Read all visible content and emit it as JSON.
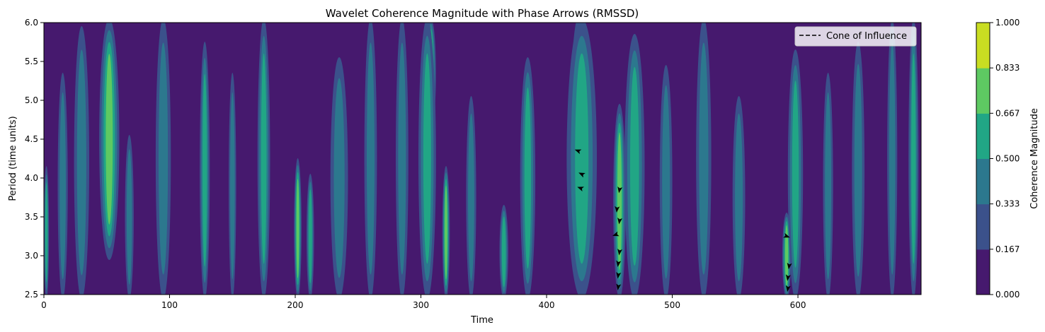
{
  "chart_data": {
    "type": "heatmap",
    "title": "Wavelet Coherence Magnitude with Phase Arrows (RMSSD)",
    "xlabel": "Time",
    "ylabel": "Period (time units)",
    "xlim": [
      0,
      698
    ],
    "ylim": [
      2.5,
      6.0
    ],
    "x_ticks": [
      "0",
      "100",
      "200",
      "300",
      "400",
      "500",
      "600"
    ],
    "y_ticks": [
      "2.5",
      "3.0",
      "3.5",
      "4.0",
      "4.5",
      "5.0",
      "5.5",
      "6.0"
    ],
    "colorbar": {
      "label": "Coherence Magnitude",
      "levels": [
        "0.000",
        "0.167",
        "0.333",
        "0.500",
        "0.667",
        "0.833",
        "1.000"
      ],
      "colors": [
        "#46196e",
        "#3b518b",
        "#2c788e",
        "#21a685",
        "#5ec962",
        "#c9dd22"
      ]
    },
    "legend": {
      "label": "Cone of Influence",
      "style": "dashed",
      "color": "#000000",
      "position": "top-right"
    },
    "phase_arrows": [
      {
        "x": 425,
        "y": 4.35,
        "angle": 160
      },
      {
        "x": 428,
        "y": 4.05,
        "angle": 155
      },
      {
        "x": 427,
        "y": 3.87,
        "angle": 160
      },
      {
        "x": 458,
        "y": 3.85,
        "angle": 260
      },
      {
        "x": 456,
        "y": 3.6,
        "angle": 265
      },
      {
        "x": 458,
        "y": 3.45,
        "angle": 262
      },
      {
        "x": 455,
        "y": 3.27,
        "angle": 200
      },
      {
        "x": 458,
        "y": 3.05,
        "angle": 262
      },
      {
        "x": 457,
        "y": 2.9,
        "angle": 262
      },
      {
        "x": 457,
        "y": 2.75,
        "angle": 262
      },
      {
        "x": 457,
        "y": 2.6,
        "angle": 262
      },
      {
        "x": 591,
        "y": 3.25,
        "angle": 340
      },
      {
        "x": 593,
        "y": 2.87,
        "angle": 262
      },
      {
        "x": 592,
        "y": 2.72,
        "angle": 262
      },
      {
        "x": 592,
        "y": 2.58,
        "angle": 262
      }
    ],
    "ridges": [
      {
        "x": 2,
        "w": 4,
        "lo": 2.5,
        "hi": 4.1,
        "peak": 3
      },
      {
        "x": 15,
        "w": 8,
        "lo": 2.5,
        "hi": 5.3,
        "peak": 2
      },
      {
        "x": 30,
        "w": 12,
        "lo": 2.5,
        "hi": 5.9,
        "peak": 2
      },
      {
        "x": 52,
        "w": 16,
        "lo": 3.0,
        "hi": 6.0,
        "peak": 4
      },
      {
        "x": 68,
        "w": 7,
        "lo": 2.5,
        "hi": 4.5,
        "peak": 2
      },
      {
        "x": 95,
        "w": 12,
        "lo": 2.5,
        "hi": 6.0,
        "peak": 2
      },
      {
        "x": 128,
        "w": 8,
        "lo": 2.5,
        "hi": 5.7,
        "peak": 3
      },
      {
        "x": 150,
        "w": 6,
        "lo": 2.5,
        "hi": 5.3,
        "peak": 2
      },
      {
        "x": 175,
        "w": 10,
        "lo": 2.5,
        "hi": 6.0,
        "peak": 3
      },
      {
        "x": 202,
        "w": 6,
        "lo": 2.5,
        "hi": 4.2,
        "peak": 4
      },
      {
        "x": 212,
        "w": 6,
        "lo": 2.5,
        "hi": 4.0,
        "peak": 3
      },
      {
        "x": 235,
        "w": 14,
        "lo": 2.5,
        "hi": 5.5,
        "peak": 2
      },
      {
        "x": 260,
        "w": 10,
        "lo": 2.5,
        "hi": 6.0,
        "peak": 2
      },
      {
        "x": 285,
        "w": 10,
        "lo": 2.5,
        "hi": 6.0,
        "peak": 2
      },
      {
        "x": 308,
        "w": 8,
        "lo": 4.7,
        "hi": 6.0,
        "peak": 4
      },
      {
        "x": 305,
        "w": 14,
        "lo": 2.5,
        "hi": 6.0,
        "peak": 3
      },
      {
        "x": 320,
        "w": 6,
        "lo": 2.5,
        "hi": 4.1,
        "peak": 4
      },
      {
        "x": 340,
        "w": 8,
        "lo": 2.5,
        "hi": 5.0,
        "peak": 2
      },
      {
        "x": 366,
        "w": 7,
        "lo": 2.5,
        "hi": 3.6,
        "peak": 3
      },
      {
        "x": 385,
        "w": 12,
        "lo": 2.5,
        "hi": 5.5,
        "peak": 3
      },
      {
        "x": 425,
        "w": 12,
        "lo": 3.1,
        "hi": 6.0,
        "peak": 4
      },
      {
        "x": 428,
        "w": 24,
        "lo": 2.5,
        "hi": 6.0,
        "peak": 3
      },
      {
        "x": 458,
        "w": 10,
        "lo": 2.5,
        "hi": 4.9,
        "peak": 4
      },
      {
        "x": 470,
        "w": 16,
        "lo": 2.5,
        "hi": 5.8,
        "peak": 3
      },
      {
        "x": 495,
        "w": 10,
        "lo": 2.5,
        "hi": 5.4,
        "peak": 2
      },
      {
        "x": 525,
        "w": 12,
        "lo": 2.5,
        "hi": 6.0,
        "peak": 2
      },
      {
        "x": 553,
        "w": 10,
        "lo": 2.5,
        "hi": 5.0,
        "peak": 2
      },
      {
        "x": 591,
        "w": 7,
        "lo": 2.5,
        "hi": 3.5,
        "peak": 4
      },
      {
        "x": 598,
        "w": 12,
        "lo": 2.5,
        "hi": 5.6,
        "peak": 3
      },
      {
        "x": 624,
        "w": 8,
        "lo": 2.5,
        "hi": 5.3,
        "peak": 2
      },
      {
        "x": 648,
        "w": 10,
        "lo": 2.5,
        "hi": 5.7,
        "peak": 2
      },
      {
        "x": 675,
        "w": 8,
        "lo": 2.5,
        "hi": 6.0,
        "peak": 2
      },
      {
        "x": 692,
        "w": 8,
        "lo": 2.5,
        "hi": 6.0,
        "peak": 3
      }
    ]
  }
}
